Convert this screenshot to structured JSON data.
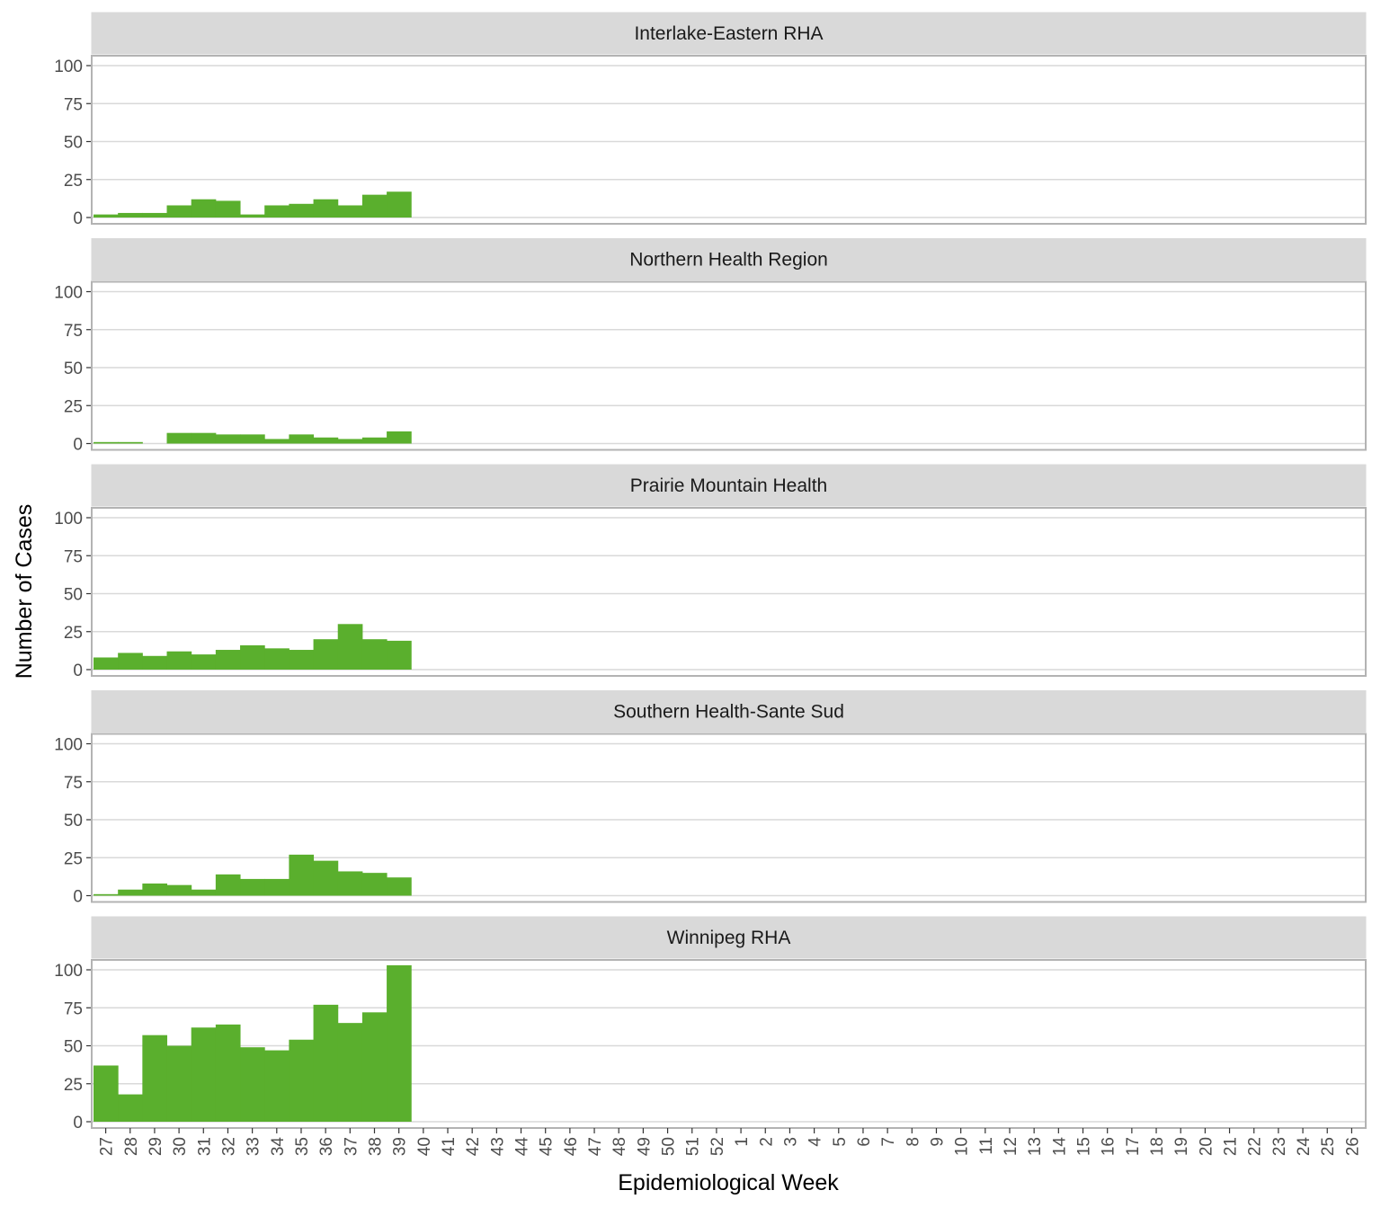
{
  "chart_data": {
    "type": "bar",
    "facet_layout": "stacked",
    "xlabel": "Epidemiological Week",
    "ylabel": "Number of Cases",
    "ylim": [
      0,
      110
    ],
    "yticks": [
      "0",
      "25",
      "50",
      "75",
      "100"
    ],
    "grid": "horizontal",
    "colors": {
      "bar": "#5AAF2D",
      "strip": "#D9D9D9",
      "panel_border": "#B3B3B3",
      "grid": "#D9D9D9"
    },
    "categories": [
      "27",
      "28",
      "29",
      "30",
      "31",
      "32",
      "33",
      "34",
      "35",
      "36",
      "37",
      "38",
      "39",
      "40",
      "41",
      "42",
      "43",
      "44",
      "45",
      "46",
      "47",
      "48",
      "49",
      "50",
      "51",
      "52",
      "1",
      "2",
      "3",
      "4",
      "5",
      "6",
      "7",
      "8",
      "9",
      "10",
      "11",
      "12",
      "13",
      "14",
      "15",
      "16",
      "17",
      "18",
      "19",
      "20",
      "21",
      "22",
      "23",
      "24",
      "25",
      "26"
    ],
    "panels": [
      {
        "name": "Interlake-Eastern RHA",
        "values": [
          2,
          3,
          3,
          8,
          12,
          11,
          2,
          8,
          9,
          12,
          8,
          15,
          17
        ]
      },
      {
        "name": "Northern Health Region",
        "values": [
          1,
          1,
          0,
          7,
          7,
          6,
          6,
          3,
          6,
          4,
          3,
          4,
          8
        ]
      },
      {
        "name": "Prairie Mountain Health",
        "values": [
          8,
          11,
          9,
          12,
          10,
          13,
          16,
          14,
          13,
          20,
          30,
          20,
          19
        ]
      },
      {
        "name": "Southern Health-Sante Sud",
        "values": [
          1,
          4,
          8,
          7,
          4,
          14,
          11,
          11,
          27,
          23,
          16,
          15,
          12
        ]
      },
      {
        "name": "Winnipeg RHA",
        "values": [
          37,
          18,
          57,
          50,
          62,
          64,
          49,
          47,
          54,
          77,
          65,
          72,
          103
        ]
      }
    ]
  }
}
